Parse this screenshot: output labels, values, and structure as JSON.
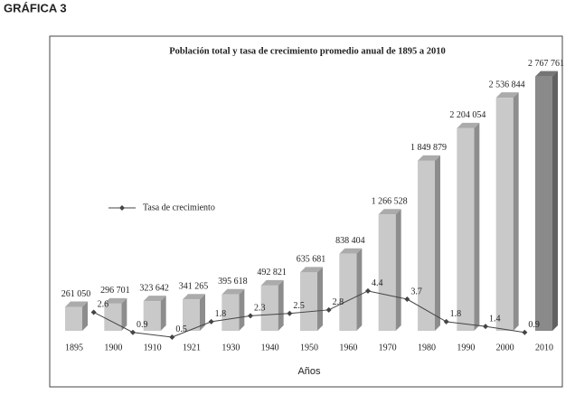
{
  "heading": "GRÁFICA 3",
  "chart_data": {
    "type": "bar",
    "title": "Población total y tasa de crecimiento promedio anual de 1895 a 2010",
    "x_label": "Años",
    "categories": [
      "1895",
      "1900",
      "1910",
      "1921",
      "1930",
      "1940",
      "1950",
      "1960",
      "1970",
      "1980",
      "1990",
      "2000",
      "2010"
    ],
    "values": [
      261050,
      296701,
      323642,
      341265,
      395618,
      492821,
      635681,
      838404,
      1266528,
      1849879,
      2204054,
      2536844,
      2767761
    ],
    "value_labels": [
      "261 050",
      "296 701",
      "323 642",
      "341 265",
      "395 618",
      "492 821",
      "635 681",
      "838 404",
      "1 266 528",
      "1 849 879",
      "2 204 054",
      "2 536 844",
      "2 767 761"
    ],
    "colors": [
      "#c9c9c9",
      "#c9c9c9",
      "#c9c9c9",
      "#c9c9c9",
      "#c9c9c9",
      "#c9c9c9",
      "#c9c9c9",
      "#c9c9c9",
      "#c9c9c9",
      "#c9c9c9",
      "#c9c9c9",
      "#c9c9c9",
      "#8a8a8a"
    ],
    "ylim": [
      0,
      3000000
    ],
    "line_series": {
      "name": "Tasa de crecimiento",
      "color": "#444444",
      "axis": "y2",
      "values": [
        null,
        2.6,
        0.9,
        0.5,
        1.8,
        2.3,
        2.5,
        2.8,
        4.4,
        3.7,
        1.8,
        1.4,
        0.9
      ]
    },
    "y2lim": [
      0,
      5
    ],
    "legend": "left"
  }
}
